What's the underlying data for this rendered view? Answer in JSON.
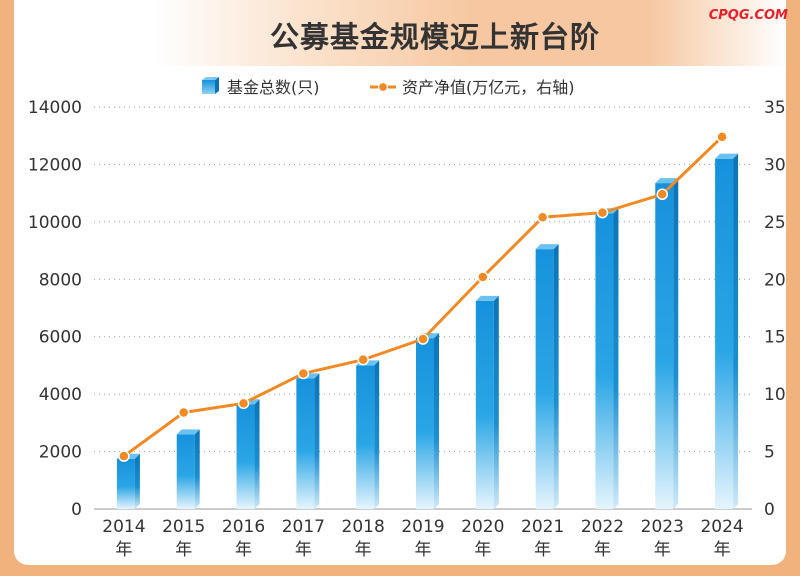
{
  "title": "公募基金规模迈上新台阶",
  "brand": "CPQG.COM",
  "chart_data": {
    "type": "bar",
    "categories": [
      "2014年",
      "2015年",
      "2016年",
      "2017年",
      "2018年",
      "2019年",
      "2020年",
      "2021年",
      "2022年",
      "2023年",
      "2024年"
    ],
    "series": [
      {
        "name": "基金总数(只)",
        "type": "bar",
        "axis": "left",
        "color": "#1a9ee0",
        "values": [
          1750,
          2600,
          3650,
          4550,
          5000,
          5950,
          7250,
          9050,
          10300,
          11350,
          12200
        ]
      },
      {
        "name": "资产净值(万亿元，右轴)",
        "type": "line",
        "axis": "right",
        "color": "#f08a24",
        "values": [
          4.6,
          8.4,
          9.2,
          11.8,
          13.0,
          14.8,
          20.2,
          25.4,
          25.8,
          27.4,
          32.4
        ]
      }
    ],
    "y_left": {
      "min": 0,
      "max": 14000,
      "ticks": [
        "0",
        "2000",
        "4000",
        "6000",
        "8000",
        "10000",
        "12000",
        "14000"
      ]
    },
    "y_right": {
      "min": 0,
      "max": 35,
      "ticks": [
        "0",
        "5",
        "10",
        "15",
        "20",
        "25",
        "30",
        "35"
      ]
    },
    "x_tick_labels": [
      [
        "2014",
        "年"
      ],
      [
        "2015",
        "年"
      ],
      [
        "2016",
        "年"
      ],
      [
        "2017",
        "年"
      ],
      [
        "2018",
        "年"
      ],
      [
        "2019",
        "年"
      ],
      [
        "2020",
        "年"
      ],
      [
        "2021",
        "年"
      ],
      [
        "2022",
        "年"
      ],
      [
        "2023",
        "年"
      ],
      [
        "2024",
        "年"
      ]
    ],
    "grid": true,
    "grid_style": "dotted",
    "legend_position": "top-center"
  }
}
